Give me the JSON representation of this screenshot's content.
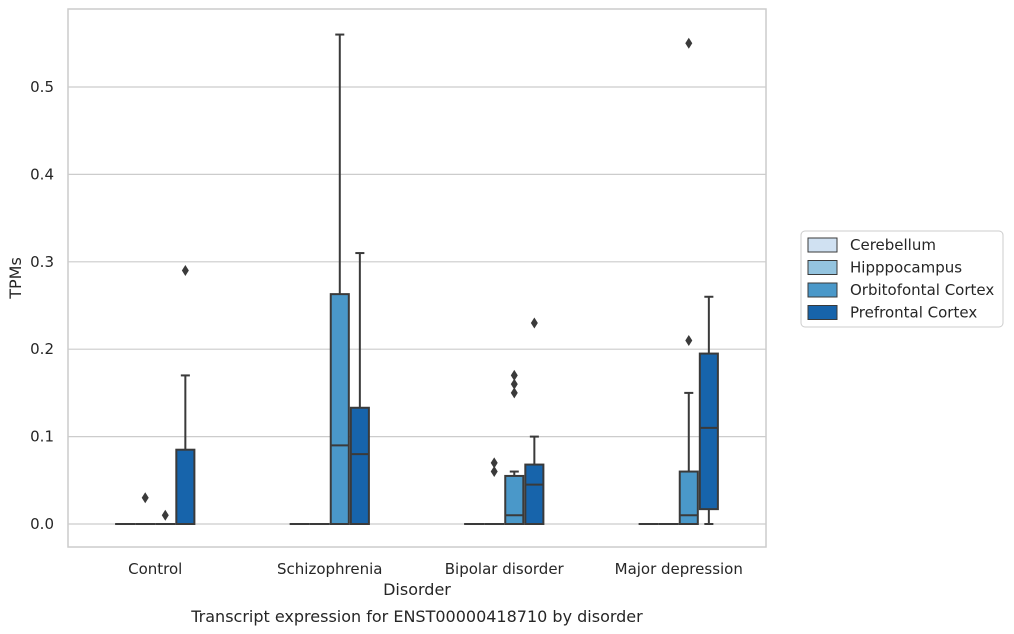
{
  "caption": "Transcript expression for ENST00000418710 by disorder",
  "chart_data": {
    "type": "box",
    "title": "",
    "xlabel": "Disorder",
    "ylabel": "TPMs",
    "ylim": [
      -0.027,
      0.59
    ],
    "yticks": [
      0.0,
      0.1,
      0.2,
      0.3,
      0.4,
      0.5
    ],
    "ytick_labels": [
      "0.0",
      "0.1",
      "0.2",
      "0.3",
      "0.4",
      "0.5"
    ],
    "grid": "horizontal",
    "legend_position": "right",
    "categories": [
      "Control",
      "Schizophrenia",
      "Bipolar disorder",
      "Major depression"
    ],
    "series": [
      {
        "name": "Cerebellum",
        "color": "#d0e1f2",
        "boxes": [
          {
            "q1": 0,
            "median": 0,
            "q3": 0,
            "whisker_low": 0,
            "whisker_high": 0,
            "fliers": []
          },
          {
            "q1": 0,
            "median": 0,
            "q3": 0,
            "whisker_low": 0,
            "whisker_high": 0,
            "fliers": []
          },
          {
            "q1": 0,
            "median": 0,
            "q3": 0,
            "whisker_low": 0,
            "whisker_high": 0,
            "fliers": []
          },
          {
            "q1": 0,
            "median": 0,
            "q3": 0,
            "whisker_low": 0,
            "whisker_high": 0,
            "fliers": []
          }
        ]
      },
      {
        "name": "Hipppocampus",
        "color": "#94c4df",
        "boxes": [
          {
            "q1": 0,
            "median": 0,
            "q3": 0,
            "whisker_low": 0,
            "whisker_high": 0,
            "fliers": [
              0.03
            ]
          },
          {
            "q1": 0,
            "median": 0,
            "q3": 0,
            "whisker_low": 0,
            "whisker_high": 0,
            "fliers": []
          },
          {
            "q1": 0,
            "median": 0,
            "q3": 0,
            "whisker_low": 0,
            "whisker_high": 0,
            "fliers": [
              0.06,
              0.07
            ]
          },
          {
            "q1": 0,
            "median": 0,
            "q3": 0,
            "whisker_low": 0,
            "whisker_high": 0,
            "fliers": []
          }
        ]
      },
      {
        "name": "Orbitofontal Cortex",
        "color": "#4a98c9",
        "boxes": [
          {
            "q1": 0,
            "median": 0,
            "q3": 0,
            "whisker_low": 0,
            "whisker_high": 0,
            "fliers": [
              0.01
            ]
          },
          {
            "q1": 0,
            "median": 0.09,
            "q3": 0.263,
            "whisker_low": 0,
            "whisker_high": 0.56,
            "fliers": []
          },
          {
            "q1": 0,
            "median": 0.01,
            "q3": 0.055,
            "whisker_low": 0,
            "whisker_high": 0.06,
            "fliers": [
              0.15,
              0.16,
              0.17
            ]
          },
          {
            "q1": 0,
            "median": 0.01,
            "q3": 0.06,
            "whisker_low": 0,
            "whisker_high": 0.15,
            "fliers": [
              0.21,
              0.55
            ]
          }
        ]
      },
      {
        "name": "Prefrontal Cortex",
        "color": "#1764ab",
        "boxes": [
          {
            "q1": 0,
            "median": 0,
            "q3": 0.085,
            "whisker_low": 0,
            "whisker_high": 0.17,
            "fliers": [
              0.29
            ]
          },
          {
            "q1": 0,
            "median": 0.08,
            "q3": 0.133,
            "whisker_low": 0,
            "whisker_high": 0.31,
            "fliers": []
          },
          {
            "q1": 0,
            "median": 0.045,
            "q3": 0.068,
            "whisker_low": 0,
            "whisker_high": 0.1,
            "fliers": [
              0.23
            ]
          },
          {
            "q1": 0.017,
            "median": 0.11,
            "q3": 0.195,
            "whisker_low": 0,
            "whisker_high": 0.26,
            "fliers": []
          }
        ]
      }
    ]
  }
}
